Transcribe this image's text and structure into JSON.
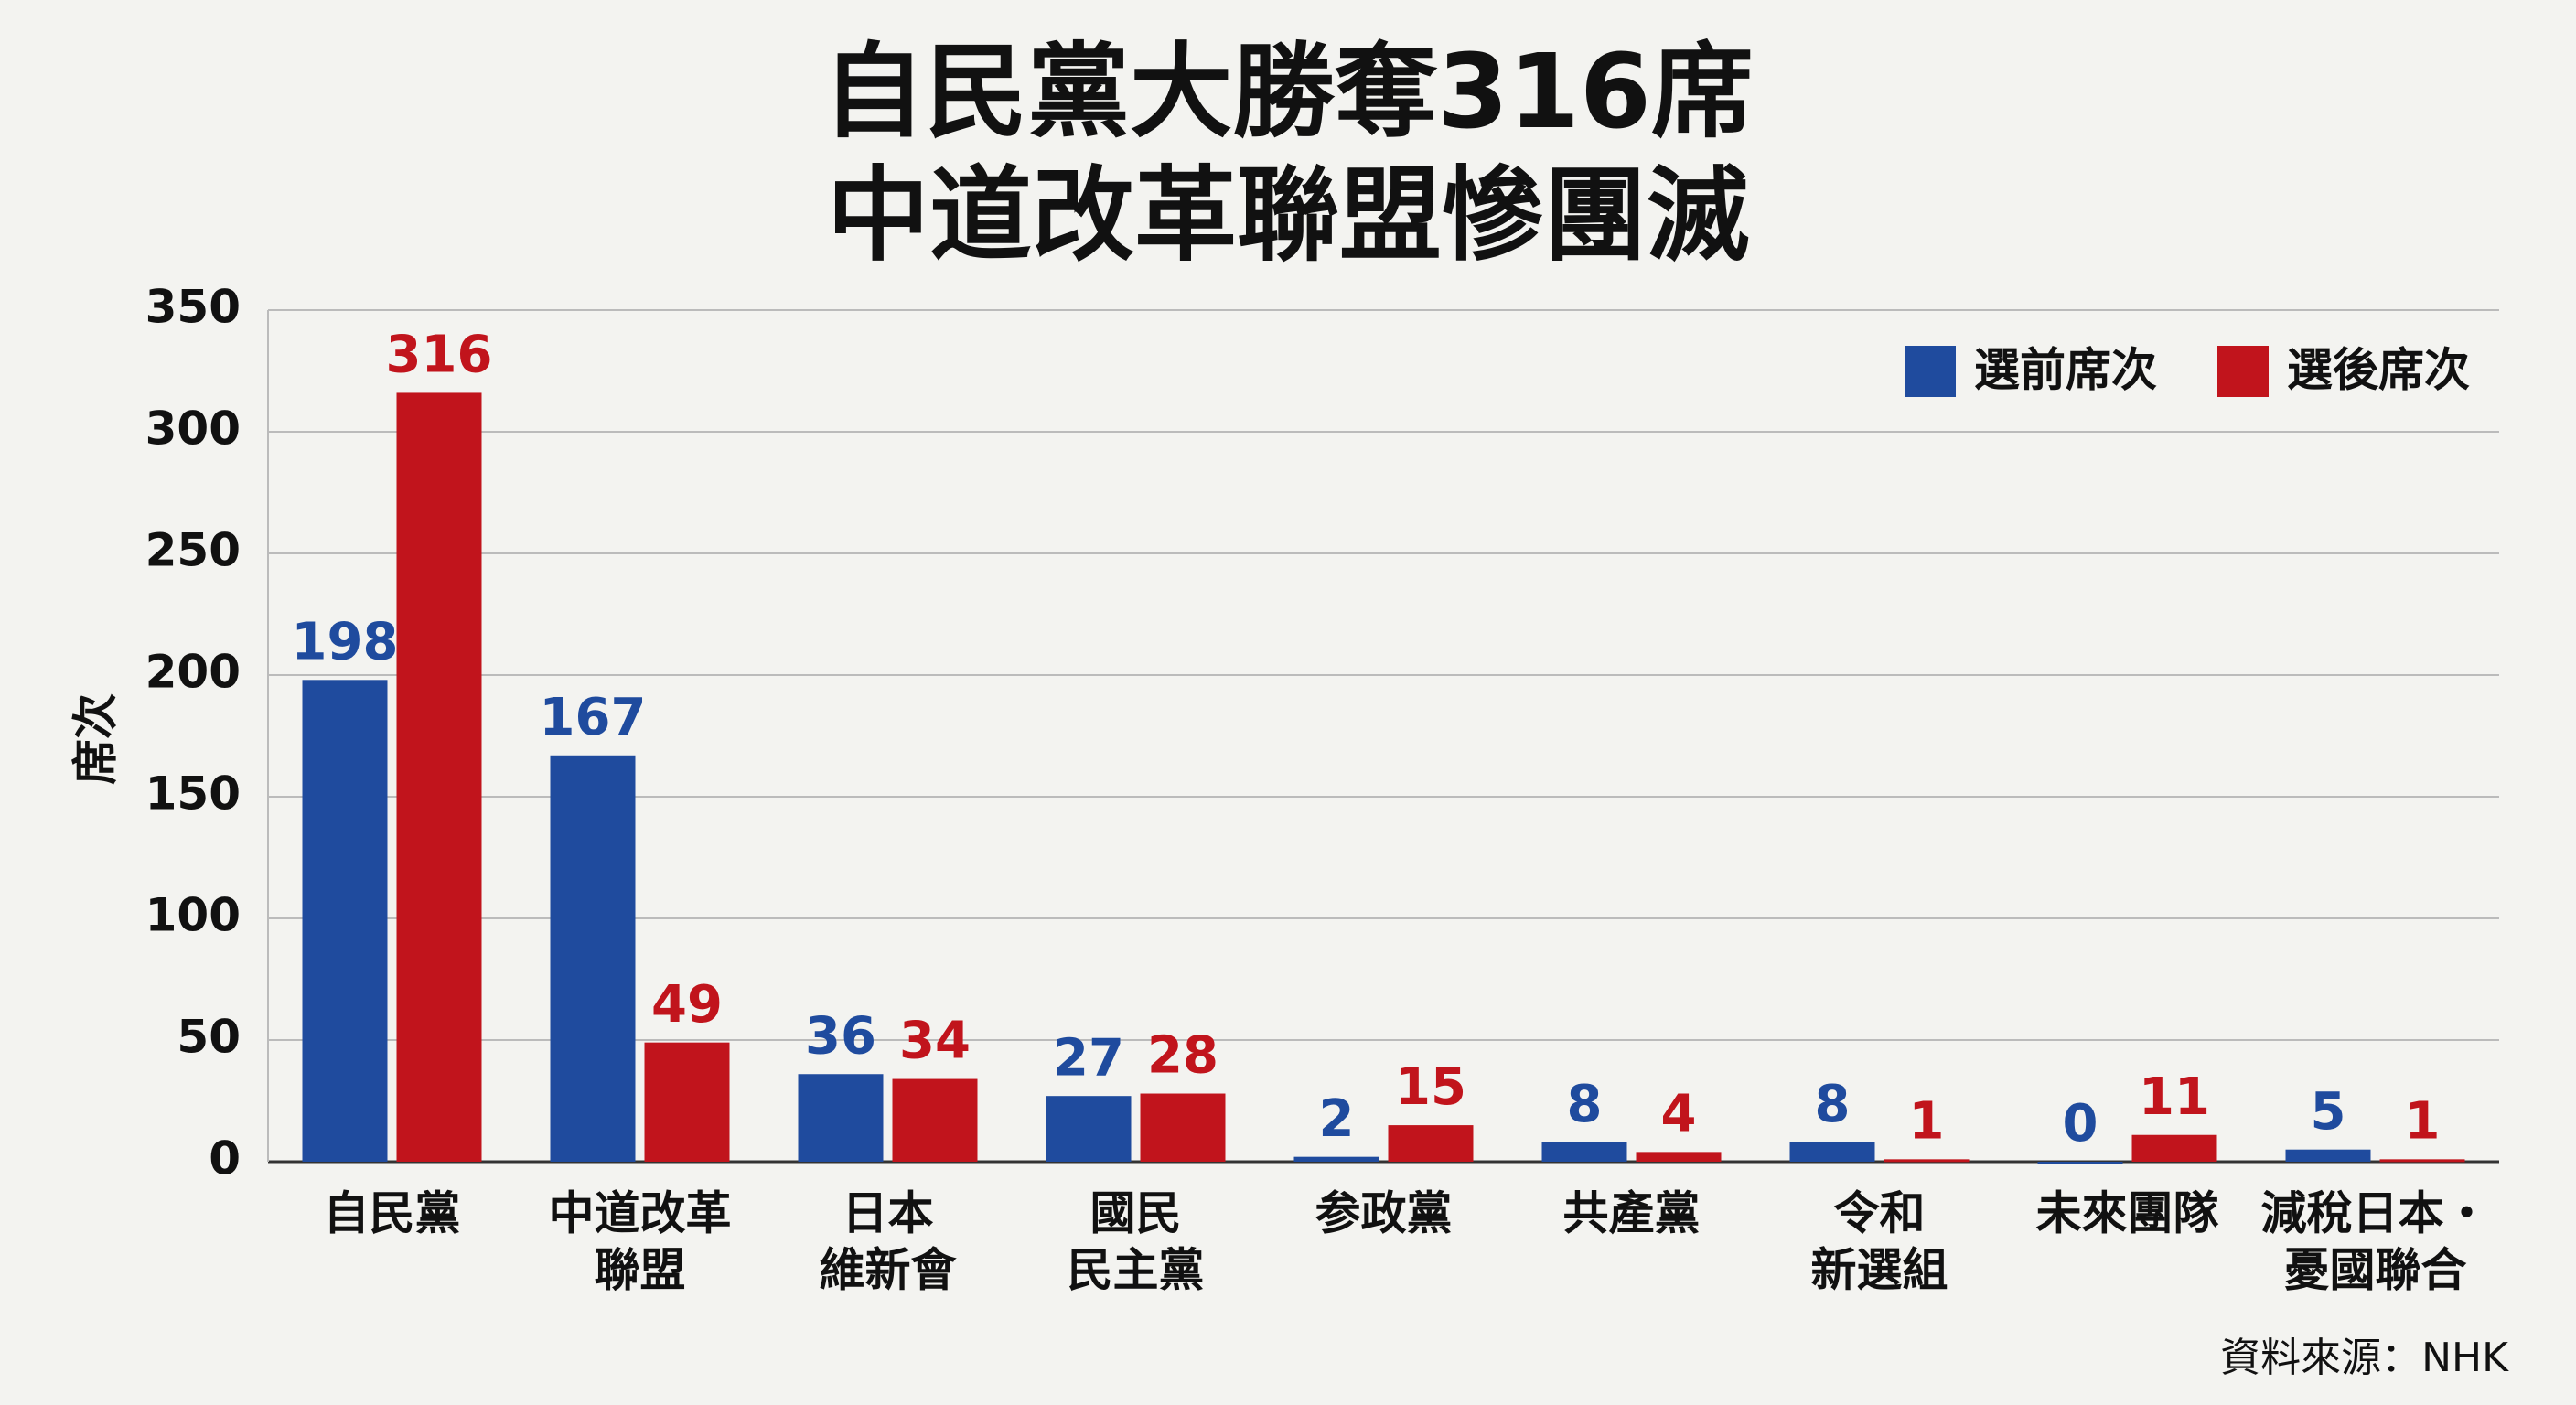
{
  "chart_data": {
    "type": "bar",
    "title": [
      "自民黨大勝奪316席",
      "中道改革聯盟慘團滅"
    ],
    "y_label": "席次",
    "categories": [
      [
        "自民黨"
      ],
      [
        "中道改革",
        "聯盟"
      ],
      [
        "日本",
        "維新會"
      ],
      [
        "國民",
        "民主黨"
      ],
      [
        "参政黨"
      ],
      [
        "共產黨"
      ],
      [
        "令和",
        "新選組"
      ],
      [
        "未來團隊"
      ],
      [
        "減稅日本・",
        "憂國聯合"
      ]
    ],
    "series": [
      {
        "name": "選前席次",
        "color": "#1f4b9e",
        "values": [
          198,
          167,
          36,
          27,
          2,
          8,
          8,
          0,
          5
        ]
      },
      {
        "name": "選後席次",
        "color": "#c1141c",
        "values": [
          316,
          49,
          34,
          28,
          15,
          4,
          1,
          11,
          1
        ]
      }
    ],
    "ylim": [
      0,
      350
    ],
    "yticks": [
      0,
      50,
      100,
      150,
      200,
      250,
      300,
      350
    ],
    "grid": true,
    "legend": "upper right",
    "source": "資料來源：NHK"
  }
}
